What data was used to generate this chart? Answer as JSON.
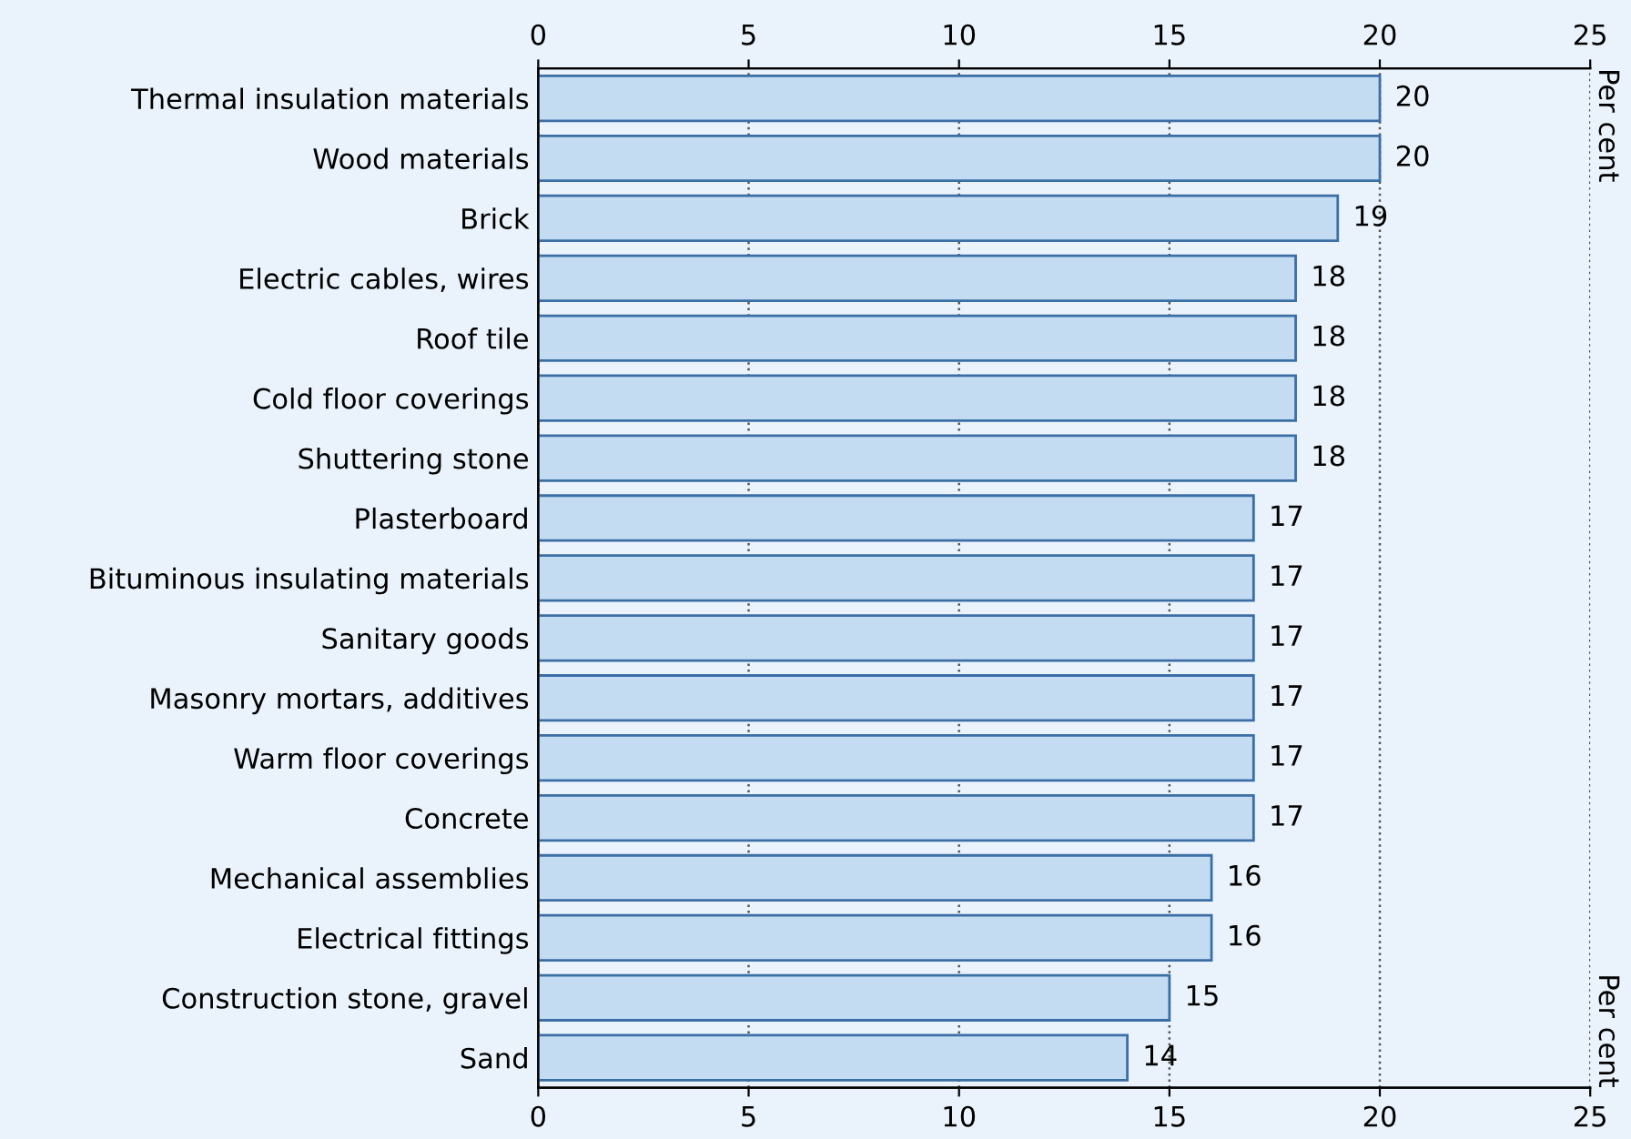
{
  "chart_data": {
    "type": "bar",
    "orientation": "horizontal",
    "categories": [
      "Thermal insulation materials",
      "Wood materials",
      "Brick",
      "Electric cables, wires",
      "Roof tile",
      "Cold floor coverings",
      "Shuttering stone",
      "Plasterboard",
      "Bituminous insulating materials",
      "Sanitary goods",
      "Masonry mortars, additives",
      "Warm floor coverings",
      "Concrete",
      "Mechanical assemblies",
      "Electrical fittings",
      "Construction stone, gravel",
      "Sand"
    ],
    "values": [
      20,
      20,
      19,
      18,
      18,
      18,
      18,
      17,
      17,
      17,
      17,
      17,
      17,
      16,
      16,
      15,
      14
    ],
    "color": "#c4dcf2",
    "xlim": [
      0,
      25
    ],
    "xticks": [
      0,
      5,
      10,
      15,
      20,
      25
    ],
    "x2lim": [
      0,
      25
    ],
    "x2ticks": [
      0,
      5,
      10,
      15,
      20,
      25
    ],
    "annotations": [
      "Per cent",
      "Per cent"
    ],
    "grid": "x",
    "data_labels": true
  }
}
